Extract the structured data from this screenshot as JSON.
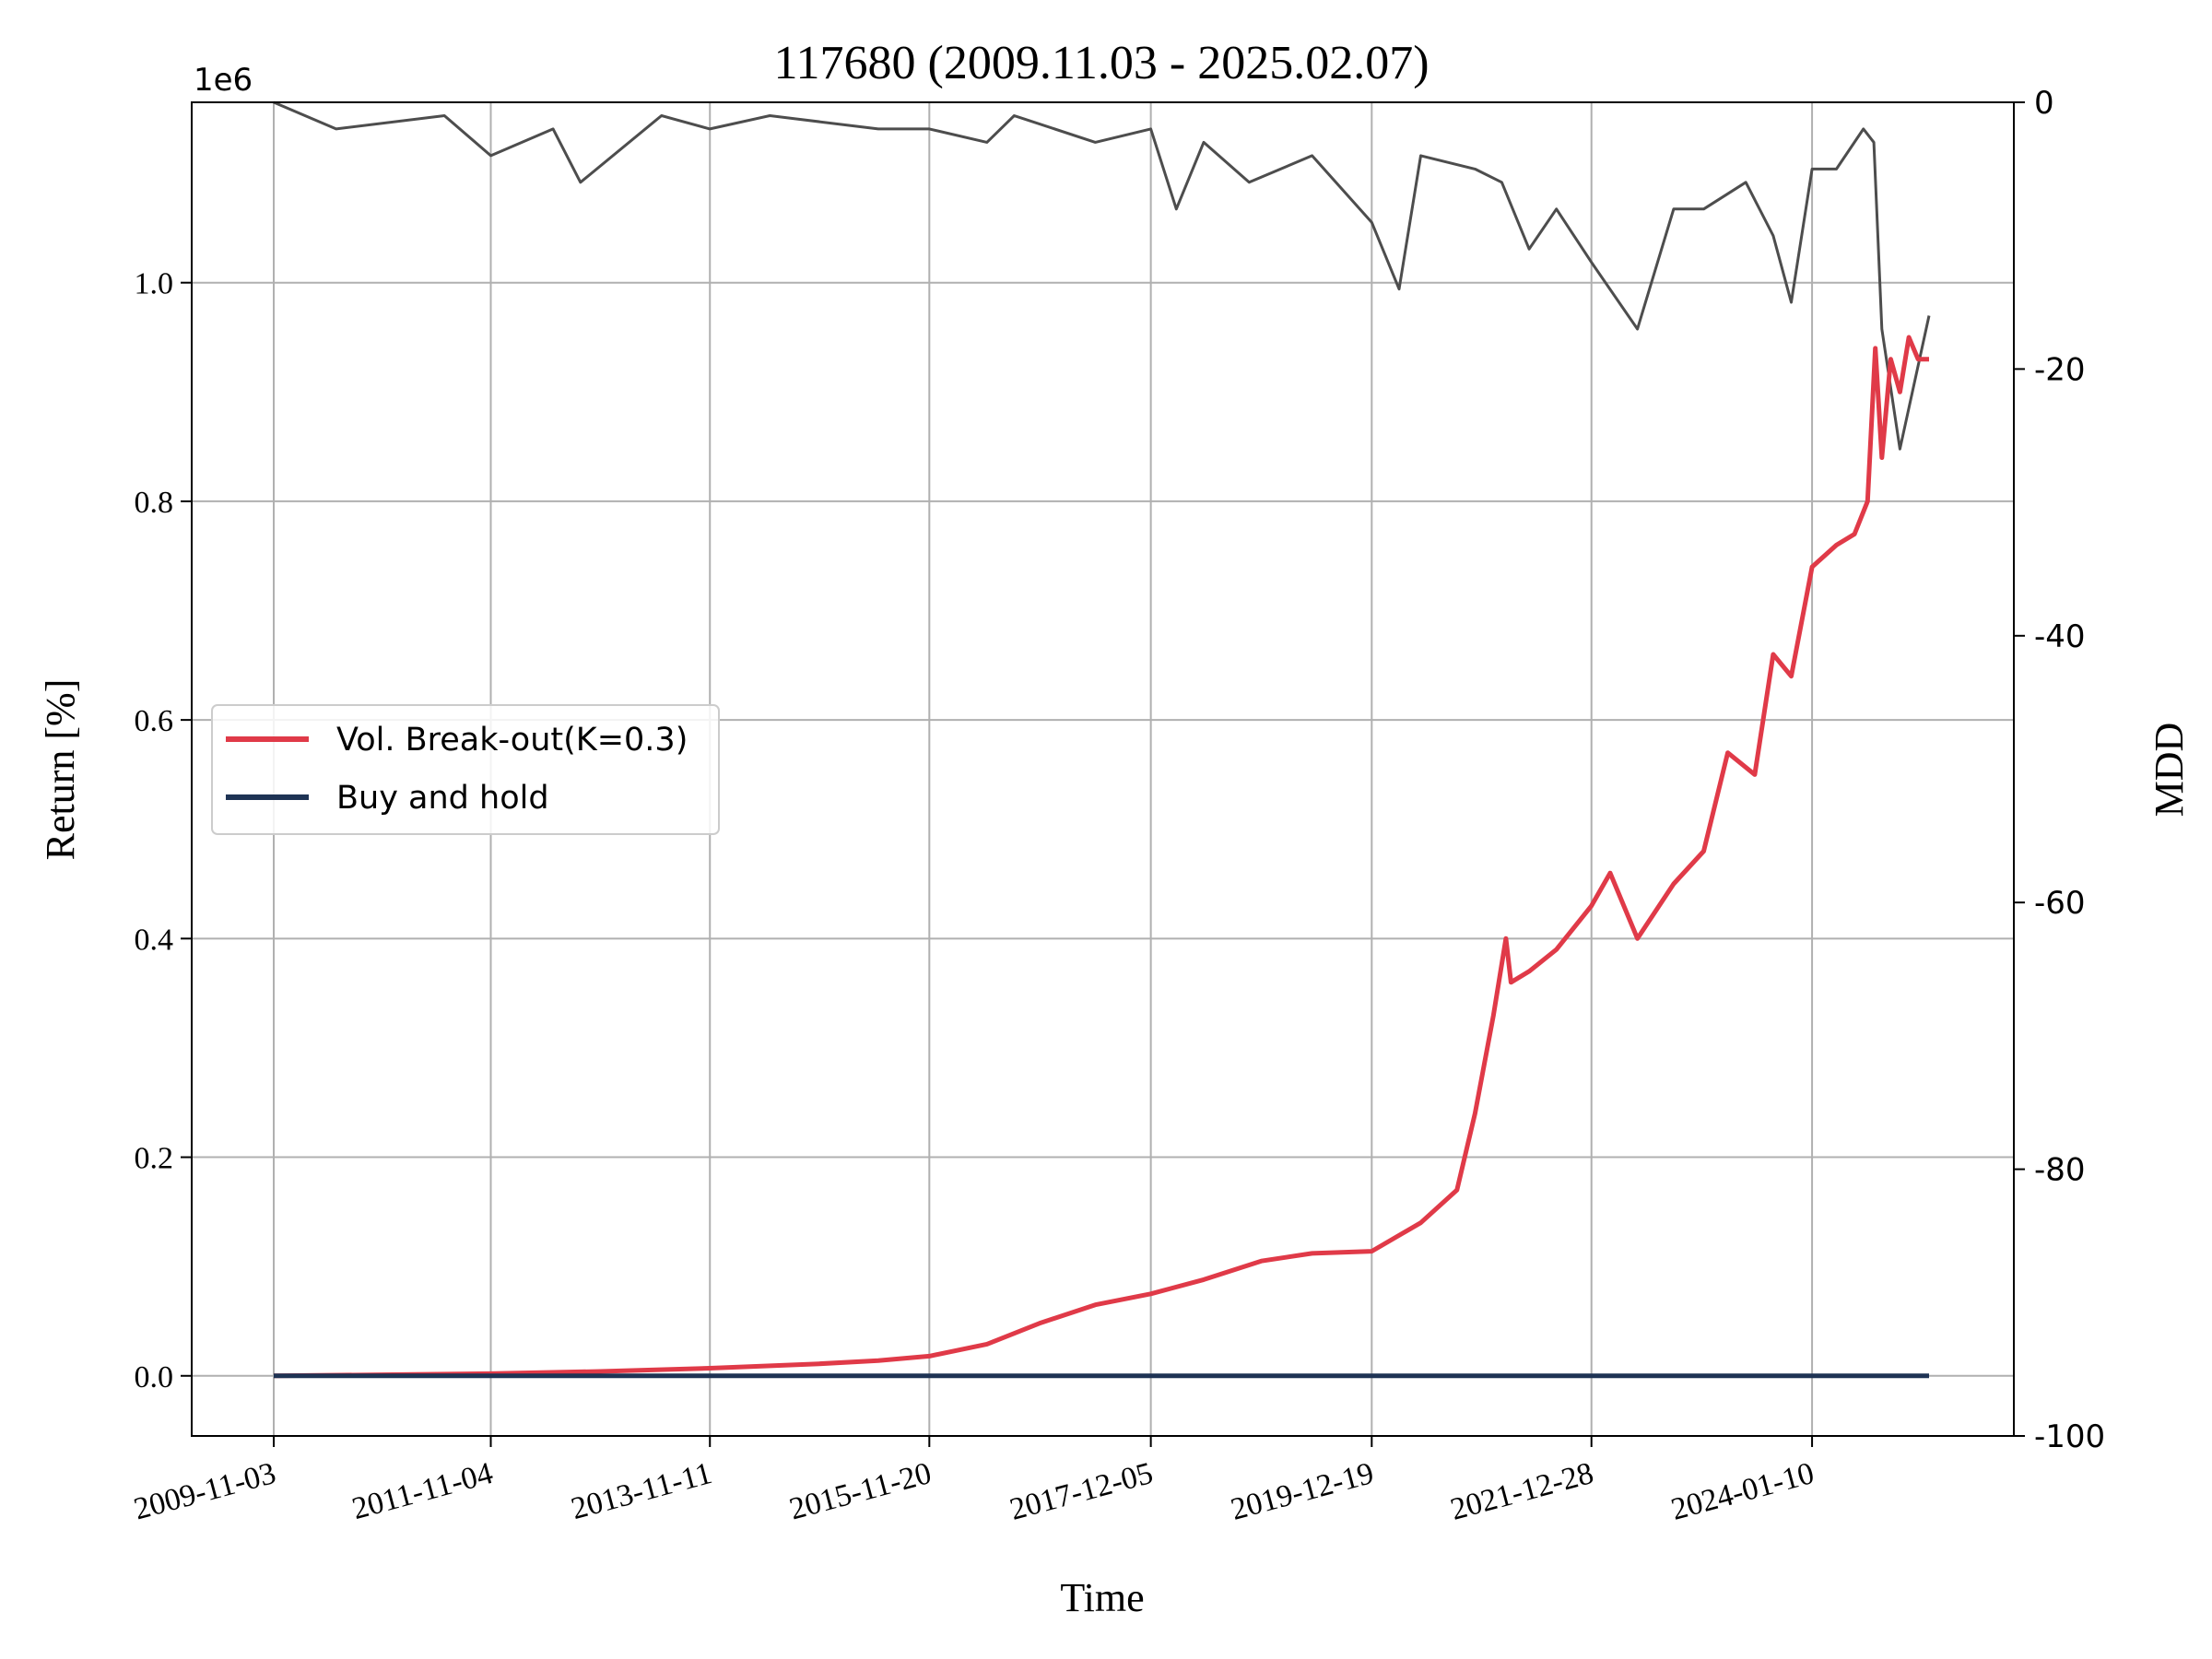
{
  "chart_data": {
    "type": "line",
    "title": "117680 (2009.11.03 - 2025.02.07)",
    "xlabel": "Time",
    "ylabel": "Return [%]",
    "y2label": "MDD",
    "y_offset_label": "1e6",
    "x_tick_labels": [
      "2009-11-03",
      "2011-11-04",
      "2013-11-11",
      "2015-11-20",
      "2017-12-05",
      "2019-12-19",
      "2021-12-28",
      "2024-01-10"
    ],
    "x_range": [
      "2009-11-03",
      "2025-02-07"
    ],
    "y_ticks": [
      0.0,
      0.2,
      0.4,
      0.6,
      0.8,
      1.0
    ],
    "y_tick_labels": [
      "0.0",
      "0.2",
      "0.4",
      "0.6",
      "0.8",
      "1.0"
    ],
    "ylim": [
      -0.055,
      1.165
    ],
    "y2_ticks": [
      0,
      -20,
      -40,
      -60,
      -80,
      -100
    ],
    "y2_tick_labels": [
      "0",
      "-20",
      "-40",
      "-60",
      "-80",
      "-100"
    ],
    "y2lim": [
      -100,
      0
    ],
    "grid": true,
    "legend_position": "center-left",
    "series": [
      {
        "name": "Vol. Break-out(K=0.3)",
        "color": "#e03a48",
        "axis": "left",
        "x": [
          "2009-11-03",
          "2010-11-04",
          "2011-11-04",
          "2012-11-07",
          "2013-11-11",
          "2014-11-14",
          "2015-06-01",
          "2015-11-20",
          "2016-06-01",
          "2016-11-25",
          "2017-06-01",
          "2017-12-05",
          "2018-06-01",
          "2018-12-12",
          "2019-06-01",
          "2019-12-19",
          "2020-06-01",
          "2020-10-01",
          "2020-12-01",
          "2021-02-01",
          "2021-03-15",
          "2021-04-01",
          "2021-06-01",
          "2021-09-01",
          "2021-12-28",
          "2022-03-01",
          "2022-06-01",
          "2022-10-01",
          "2023-01-10",
          "2023-04-01",
          "2023-07-01",
          "2023-09-01",
          "2023-11-01",
          "2024-01-10",
          "2024-04-01",
          "2024-06-01",
          "2024-07-15",
          "2024-08-10",
          "2024-09-01",
          "2024-10-01",
          "2024-11-01",
          "2024-12-01",
          "2025-01-01",
          "2025-02-07"
        ],
        "values": [
          0.0,
          0.001,
          0.002,
          0.004,
          0.007,
          0.011,
          0.014,
          0.018,
          0.029,
          0.048,
          0.065,
          0.075,
          0.088,
          0.105,
          0.112,
          0.114,
          0.14,
          0.17,
          0.24,
          0.33,
          0.4,
          0.36,
          0.37,
          0.39,
          0.43,
          0.46,
          0.4,
          0.45,
          0.48,
          0.57,
          0.55,
          0.66,
          0.64,
          0.74,
          0.76,
          0.77,
          0.8,
          0.94,
          0.84,
          0.93,
          0.9,
          0.95,
          0.93,
          0.93
        ]
      },
      {
        "name": "Buy and hold",
        "color": "#1e3354",
        "axis": "left",
        "x": [
          "2009-11-03",
          "2025-02-07"
        ],
        "values": [
          0.0,
          0.0
        ]
      },
      {
        "name": "",
        "color": "#4d4d4d",
        "axis": "right",
        "x": [
          "2009-11-03",
          "2010-06-01",
          "2011-06-01",
          "2011-11-04",
          "2012-06-01",
          "2012-09-01",
          "2013-06-01",
          "2013-11-11",
          "2014-06-01",
          "2015-06-01",
          "2015-11-20",
          "2016-06-01",
          "2016-09-01",
          "2017-06-01",
          "2017-12-05",
          "2018-03-01",
          "2018-06-01",
          "2018-11-01",
          "2019-06-01",
          "2019-12-19",
          "2020-03-20",
          "2020-06-01",
          "2020-12-01",
          "2021-03-01",
          "2021-06-01",
          "2021-09-01",
          "2021-12-28",
          "2022-06-01",
          "2022-10-01",
          "2023-01-10",
          "2023-06-01",
          "2023-09-01",
          "2023-11-01",
          "2024-01-10",
          "2024-04-01",
          "2024-07-01",
          "2024-08-05",
          "2024-09-01",
          "2024-11-01",
          "2025-02-07"
        ],
        "values": [
          0,
          -2,
          -1,
          -4,
          -2,
          -6,
          -1,
          -2,
          -1,
          -2,
          -2,
          -3,
          -1,
          -3,
          -2,
          -8,
          -3,
          -6,
          -4,
          -9,
          -14,
          -4,
          -5,
          -6,
          -11,
          -8,
          -12,
          -17,
          -8,
          -8,
          -6,
          -10,
          -15,
          -5,
          -5,
          -2,
          -3,
          -17,
          -26,
          -16
        ]
      }
    ]
  }
}
